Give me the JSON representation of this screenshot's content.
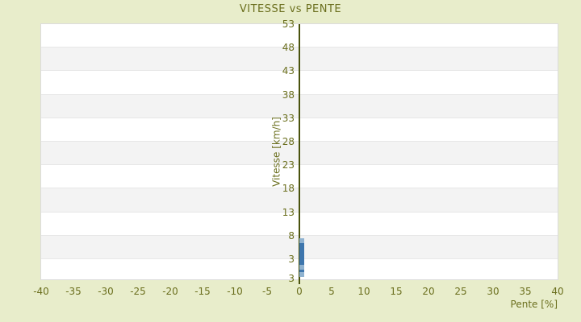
{
  "title": "VITESSE vs PENTE",
  "chart_data": {
    "type": "scatter",
    "title": "VITESSE vs PENTE",
    "xlabel": "Pente [%]",
    "ylabel": "Vitesse [km/h]",
    "xlim": [
      -40,
      40
    ],
    "x_ticks": [
      -40,
      -35,
      -30,
      -25,
      -20,
      -15,
      -10,
      -5,
      0,
      5,
      10,
      15,
      20,
      25,
      30,
      35,
      40
    ],
    "y_ticks": [
      53,
      48,
      43,
      38,
      33,
      28,
      23,
      18,
      13,
      8,
      3
    ],
    "y_bottom_tick_label": "3",
    "y_tick_step": 5,
    "grid": "alternating-horizontal-bands",
    "legend": "none",
    "series": [
      {
        "name": "vitesse-points",
        "color": "#3e76ad",
        "marker": "square",
        "points": [
          [
            0.4,
            6.4
          ],
          [
            0.4,
            5.9
          ],
          [
            0.4,
            5.4
          ],
          [
            0.4,
            4.9
          ],
          [
            0.4,
            4.4
          ],
          [
            0.4,
            3.9
          ],
          [
            0.4,
            3.3
          ],
          [
            0.4,
            2.8
          ],
          [
            0.4,
            2.3
          ],
          [
            0.4,
            1.9
          ],
          [
            0.4,
            0.4
          ]
        ]
      },
      {
        "name": "vitesse-points-faded",
        "color": "#8fb2d0",
        "marker": "square",
        "points": [
          [
            0.4,
            7.0
          ],
          [
            0.4,
            1.3
          ],
          [
            0.4,
            -0.3
          ]
        ]
      }
    ]
  },
  "colors": {
    "background": "#e8edcb",
    "text": "#6b6f1e",
    "axis_line": "#4a530e",
    "band_light": "#ffffff",
    "band_dark": "#f3f3f3",
    "gridline": "#e7e7e7",
    "plot_border": "#dcdcdc",
    "point": "#3e76ad",
    "point_faded": "#8fb2d0"
  }
}
